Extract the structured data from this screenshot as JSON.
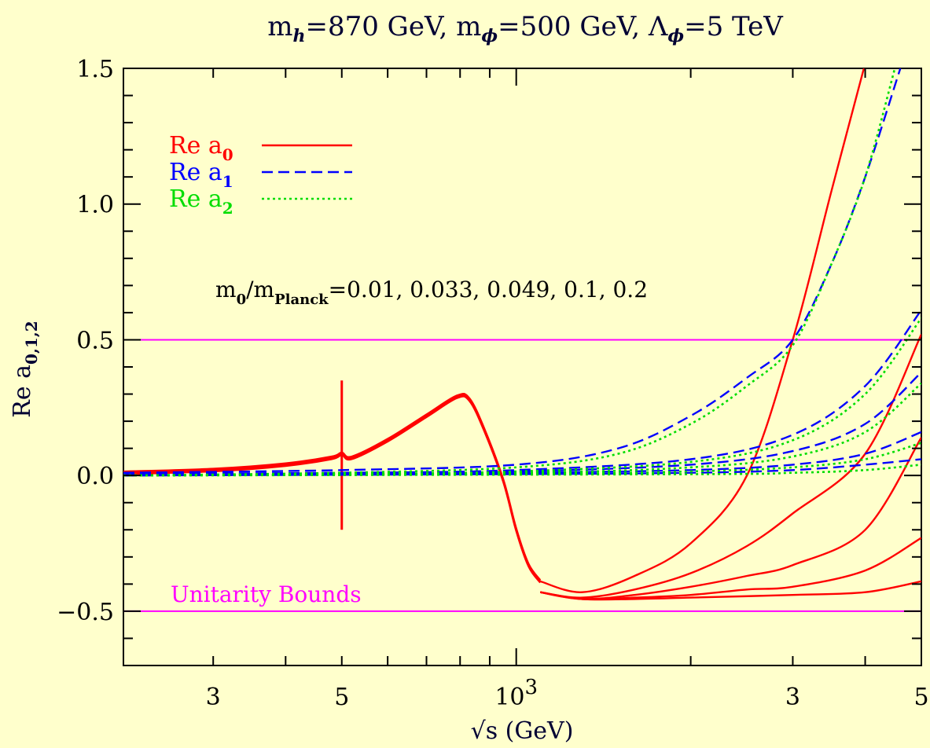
{
  "chart_data": {
    "type": "line",
    "title": {
      "main": "m",
      "parts": [
        {
          "base": "m",
          "sub": "h",
          "rest": "=870 GeV, "
        },
        {
          "base": "m",
          "sub": "ϕ",
          "rest": "=500 GeV, "
        },
        {
          "base": "Λ",
          "sub": "ϕ",
          "rest": "=5 TeV"
        }
      ]
    },
    "xlabel": "√s (GeV)",
    "ylabel": {
      "base": "Re a",
      "sub": "0,1,2"
    },
    "x_scale": "log",
    "xlim": [
      210,
      5000
    ],
    "ylim": [
      -0.7,
      1.5
    ],
    "xtick_labels": [
      {
        "x": 300,
        "label": "3"
      },
      {
        "x": 500,
        "label": "5"
      },
      {
        "x": 1000,
        "label": "10",
        "sup": "3"
      },
      {
        "x": 3000,
        "label": "3"
      },
      {
        "x": 5000,
        "label": "5"
      }
    ],
    "yticks": [
      -0.5,
      0.0,
      0.5,
      1.0,
      1.5
    ],
    "ytick_labels": [
      "−0.5",
      "0.0",
      "0.5",
      "1.0",
      "1.5"
    ],
    "legend": {
      "position": "top-left",
      "entries": [
        {
          "label": "Re a",
          "sub": "0",
          "color": "#ff0000",
          "style": "solid"
        },
        {
          "label": "Re a",
          "sub": "1",
          "color": "#0000ff",
          "style": "dashed"
        },
        {
          "label": "Re a",
          "sub": "2",
          "color": "#00dd00",
          "style": "dotted"
        }
      ]
    },
    "annotations": {
      "params": {
        "base": "m",
        "sub0": "0",
        "mid": "/m",
        "sub1": "Planck",
        "rest": "=0.01, 0.033, 0.049, 0.1, 0.2"
      },
      "unitarity": "Unitarity Bounds"
    },
    "unitarity_bounds": [
      0.5,
      -0.5
    ],
    "colors": {
      "a0": "#ff0000",
      "a1": "#0000ff",
      "a2": "#00dd00",
      "bounds": "#ff00ff",
      "text": "#000033"
    },
    "series_a0_common": [
      [
        210,
        0.01
      ],
      [
        300,
        0.02
      ],
      [
        400,
        0.04
      ],
      [
        480,
        0.065
      ],
      [
        500,
        0.08
      ],
      [
        520,
        0.065
      ],
      [
        600,
        0.13
      ],
      [
        700,
        0.22
      ],
      [
        790,
        0.29
      ],
      [
        830,
        0.28
      ],
      [
        880,
        0.17
      ],
      [
        950,
        -0.02
      ],
      [
        1000,
        -0.2
      ],
      [
        1050,
        -0.33
      ],
      [
        1100,
        -0.39
      ]
    ],
    "resonance_spike": {
      "x": 500,
      "ymin": -0.2,
      "ymax": 0.35
    },
    "series": [
      {
        "name": "Re a0 (m0/mPlanck=0.2)",
        "group": "a0",
        "points": [
          [
            1100,
            -0.39
          ],
          [
            1300,
            -0.43
          ],
          [
            1600,
            -0.37
          ],
          [
            2000,
            -0.25
          ],
          [
            2500,
            0.0
          ],
          [
            3000,
            0.5
          ],
          [
            3500,
            1.05
          ],
          [
            3980,
            1.5
          ]
        ]
      },
      {
        "name": "Re a0 (m0/mPlanck=0.1)",
        "group": "a0",
        "points": [
          [
            1100,
            -0.43
          ],
          [
            1300,
            -0.45
          ],
          [
            1600,
            -0.42
          ],
          [
            2000,
            -0.36
          ],
          [
            2500,
            -0.26
          ],
          [
            3000,
            -0.14
          ],
          [
            4000,
            0.08
          ],
          [
            5000,
            0.52
          ]
        ]
      },
      {
        "name": "Re a0 (m0/mPlanck=0.049)",
        "group": "a0",
        "points": [
          [
            1100,
            -0.43
          ],
          [
            1300,
            -0.455
          ],
          [
            1600,
            -0.44
          ],
          [
            2000,
            -0.41
          ],
          [
            2500,
            -0.37
          ],
          [
            3000,
            -0.33
          ],
          [
            4000,
            -0.2
          ],
          [
            5000,
            0.14
          ]
        ]
      },
      {
        "name": "Re a0 (m0/mPlanck=0.033)",
        "group": "a0",
        "points": [
          [
            1100,
            -0.43
          ],
          [
            1300,
            -0.455
          ],
          [
            1600,
            -0.45
          ],
          [
            2000,
            -0.44
          ],
          [
            2500,
            -0.42
          ],
          [
            3000,
            -0.41
          ],
          [
            4000,
            -0.35
          ],
          [
            5000,
            -0.23
          ]
        ]
      },
      {
        "name": "Re a0 (m0/mPlanck=0.01)",
        "group": "a0",
        "points": [
          [
            1100,
            -0.43
          ],
          [
            1300,
            -0.455
          ],
          [
            1600,
            -0.455
          ],
          [
            2000,
            -0.45
          ],
          [
            3000,
            -0.44
          ],
          [
            4000,
            -0.43
          ],
          [
            5000,
            -0.39
          ]
        ]
      },
      {
        "name": "Re a1 (m0/mPlanck=0.2)",
        "group": "a1",
        "points": [
          [
            210,
            0.01
          ],
          [
            500,
            0.02
          ],
          [
            1000,
            0.04
          ],
          [
            1500,
            0.1
          ],
          [
            2000,
            0.22
          ],
          [
            2500,
            0.36
          ],
          [
            3000,
            0.5
          ],
          [
            3500,
            0.78
          ],
          [
            4000,
            1.1
          ],
          [
            4600,
            1.5
          ]
        ]
      },
      {
        "name": "Re a1 (m0/mPlanck=0.1)",
        "group": "a1",
        "points": [
          [
            210,
            0.005
          ],
          [
            500,
            0.01
          ],
          [
            1000,
            0.02
          ],
          [
            2000,
            0.06
          ],
          [
            3000,
            0.15
          ],
          [
            4000,
            0.33
          ],
          [
            5000,
            0.61
          ]
        ]
      },
      {
        "name": "Re a1 (m0/mPlanck=0.049)",
        "group": "a1",
        "points": [
          [
            210,
            0.005
          ],
          [
            500,
            0.01
          ],
          [
            1000,
            0.015
          ],
          [
            2000,
            0.04
          ],
          [
            3000,
            0.09
          ],
          [
            4000,
            0.19
          ],
          [
            5000,
            0.38
          ]
        ]
      },
      {
        "name": "Re a1 (m0/mPlanck=0.033)",
        "group": "a1",
        "points": [
          [
            210,
            0.0
          ],
          [
            500,
            0.005
          ],
          [
            1000,
            0.01
          ],
          [
            2000,
            0.02
          ],
          [
            3000,
            0.04
          ],
          [
            4000,
            0.08
          ],
          [
            5000,
            0.16
          ]
        ]
      },
      {
        "name": "Re a1 (m0/mPlanck=0.01)",
        "group": "a1",
        "points": [
          [
            210,
            0.0
          ],
          [
            1000,
            0.005
          ],
          [
            2000,
            0.01
          ],
          [
            3000,
            0.02
          ],
          [
            4000,
            0.04
          ],
          [
            5000,
            0.06
          ]
        ]
      },
      {
        "name": "Re a2 (m0/mPlanck=0.2)",
        "group": "a2",
        "points": [
          [
            210,
            0.0
          ],
          [
            500,
            0.01
          ],
          [
            1000,
            0.03
          ],
          [
            1500,
            0.08
          ],
          [
            2000,
            0.19
          ],
          [
            2500,
            0.33
          ],
          [
            3000,
            0.48
          ],
          [
            3500,
            0.78
          ],
          [
            4000,
            1.1
          ],
          [
            4500,
            1.5
          ]
        ]
      },
      {
        "name": "Re a2 (m0/mPlanck=0.1)",
        "group": "a2",
        "points": [
          [
            210,
            0.0
          ],
          [
            500,
            0.005
          ],
          [
            1000,
            0.015
          ],
          [
            2000,
            0.05
          ],
          [
            3000,
            0.13
          ],
          [
            4000,
            0.3
          ],
          [
            5000,
            0.58
          ]
        ]
      },
      {
        "name": "Re a2 (m0/mPlanck=0.049)",
        "group": "a2",
        "points": [
          [
            210,
            0.0
          ],
          [
            1000,
            0.01
          ],
          [
            2000,
            0.03
          ],
          [
            3000,
            0.07
          ],
          [
            4000,
            0.16
          ],
          [
            5000,
            0.34
          ]
        ]
      },
      {
        "name": "Re a2 (m0/mPlanck=0.033)",
        "group": "a2",
        "points": [
          [
            210,
            0.0
          ],
          [
            1000,
            0.005
          ],
          [
            2000,
            0.015
          ],
          [
            3000,
            0.03
          ],
          [
            4000,
            0.06
          ],
          [
            5000,
            0.12
          ]
        ]
      },
      {
        "name": "Re a2 (m0/mPlanck=0.01)",
        "group": "a2",
        "points": [
          [
            210,
            0.0
          ],
          [
            2000,
            0.005
          ],
          [
            3000,
            0.01
          ],
          [
            4000,
            0.02
          ],
          [
            5000,
            0.04
          ]
        ]
      }
    ]
  }
}
